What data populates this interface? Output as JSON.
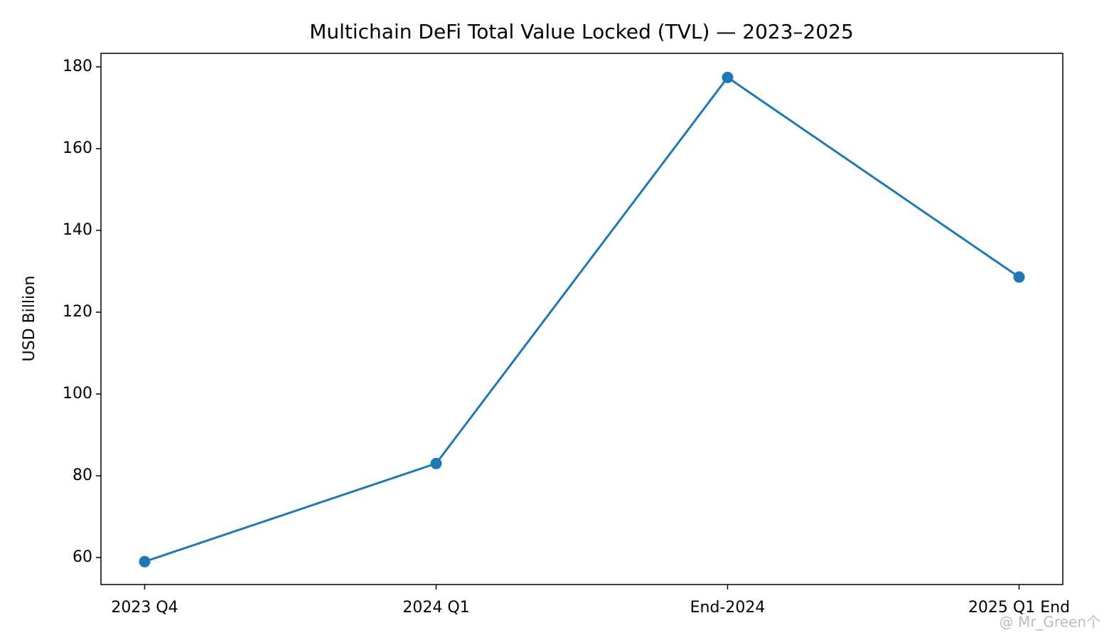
{
  "chart_data": {
    "type": "line",
    "title": "Multichain DeFi Total Value Locked (TVL) — 2023–2025",
    "ylabel": "USD Billion",
    "categories": [
      "2023 Q4",
      "2024 Q1",
      "End-2024",
      "2025 Q1 End"
    ],
    "series": [
      {
        "name": "TVL",
        "color": "#1f77b4",
        "values": [
          59,
          83,
          177.4,
          128.6
        ]
      }
    ],
    "ylim": [
      53.4,
      183.3
    ],
    "yticks": [
      60,
      80,
      100,
      120,
      140,
      160,
      180
    ],
    "grid": false,
    "watermark": "@ Mr_Green个"
  }
}
